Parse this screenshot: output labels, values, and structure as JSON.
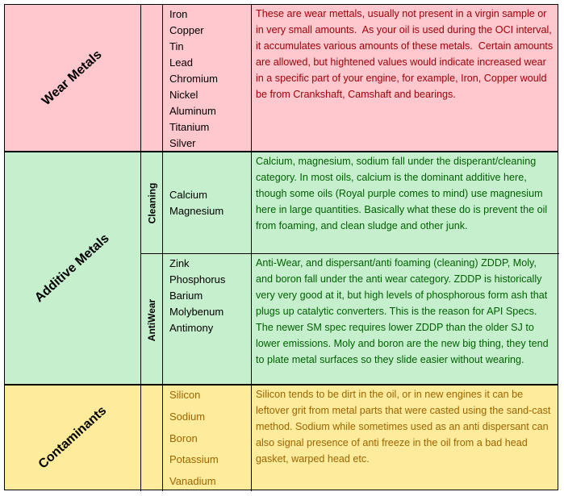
{
  "sections": [
    {
      "label": "Wear Metals",
      "groups": [
        {
          "items": [
            "Iron",
            "Copper",
            "Tin",
            "Lead",
            "Chromium",
            "Nickel",
            "Aluminum",
            "Titanium",
            "Silver"
          ],
          "description": "These are wear mettals, usually not present in a virgin sample or in very small amounts.  As your oil is used during the OCI interval, it accumulates various amounts of these metals.  Certain amounts are allowed, but hightened values would indicate increased wear in a specific part of your engine, for example, Iron, Copper would be from Crankshaft, Camshaft and bearings."
        }
      ]
    },
    {
      "label": "Additive Metals",
      "groups": [
        {
          "label": "Cleaning",
          "items": [
            "Calcium",
            "Magnesium"
          ],
          "description": "Calcium, magnesium, sodium fall under the disperant/cleaning category. In most oils, calcium is the dominant additive here, though some oils (Royal purple comes to mind) use magnesium here in large quantities. Basically what these do is prevent the oil from foaming, and clean sludge and other junk."
        },
        {
          "label": "AntiWear",
          "items": [
            "Zink",
            "Phosphorus",
            "Barium",
            "Molybenum",
            "Antimony"
          ],
          "description": "Anti-Wear, and dispersant/anti foaming (cleaning) ZDDP, Moly, and boron fall under the anti wear category. ZDDP is historically very very good at it, but high levels of phosphorous form ash that plugs up catalytic converters. This is the reason for API Specs. The newer SM spec requires lower ZDDP than the older SJ to lower emissions. Moly and boron are the new big thing, they tend to plate metal surfaces so they slide easier without wearing."
        }
      ]
    },
    {
      "label": "Contaminants",
      "groups": [
        {
          "items": [
            "Silicon",
            "Sodium",
            "Boron",
            "Potassium",
            "Vanadium"
          ],
          "description": "Silicon tends to be dirt in the oil, or in new engines it can be leftover grit from metal parts that were casted using the sand-cast method. Sodium while sometimes used as an anti dispersant can also signal presence of anti freeze in the oil from a bad head gasket, warped head etc."
        }
      ]
    }
  ]
}
